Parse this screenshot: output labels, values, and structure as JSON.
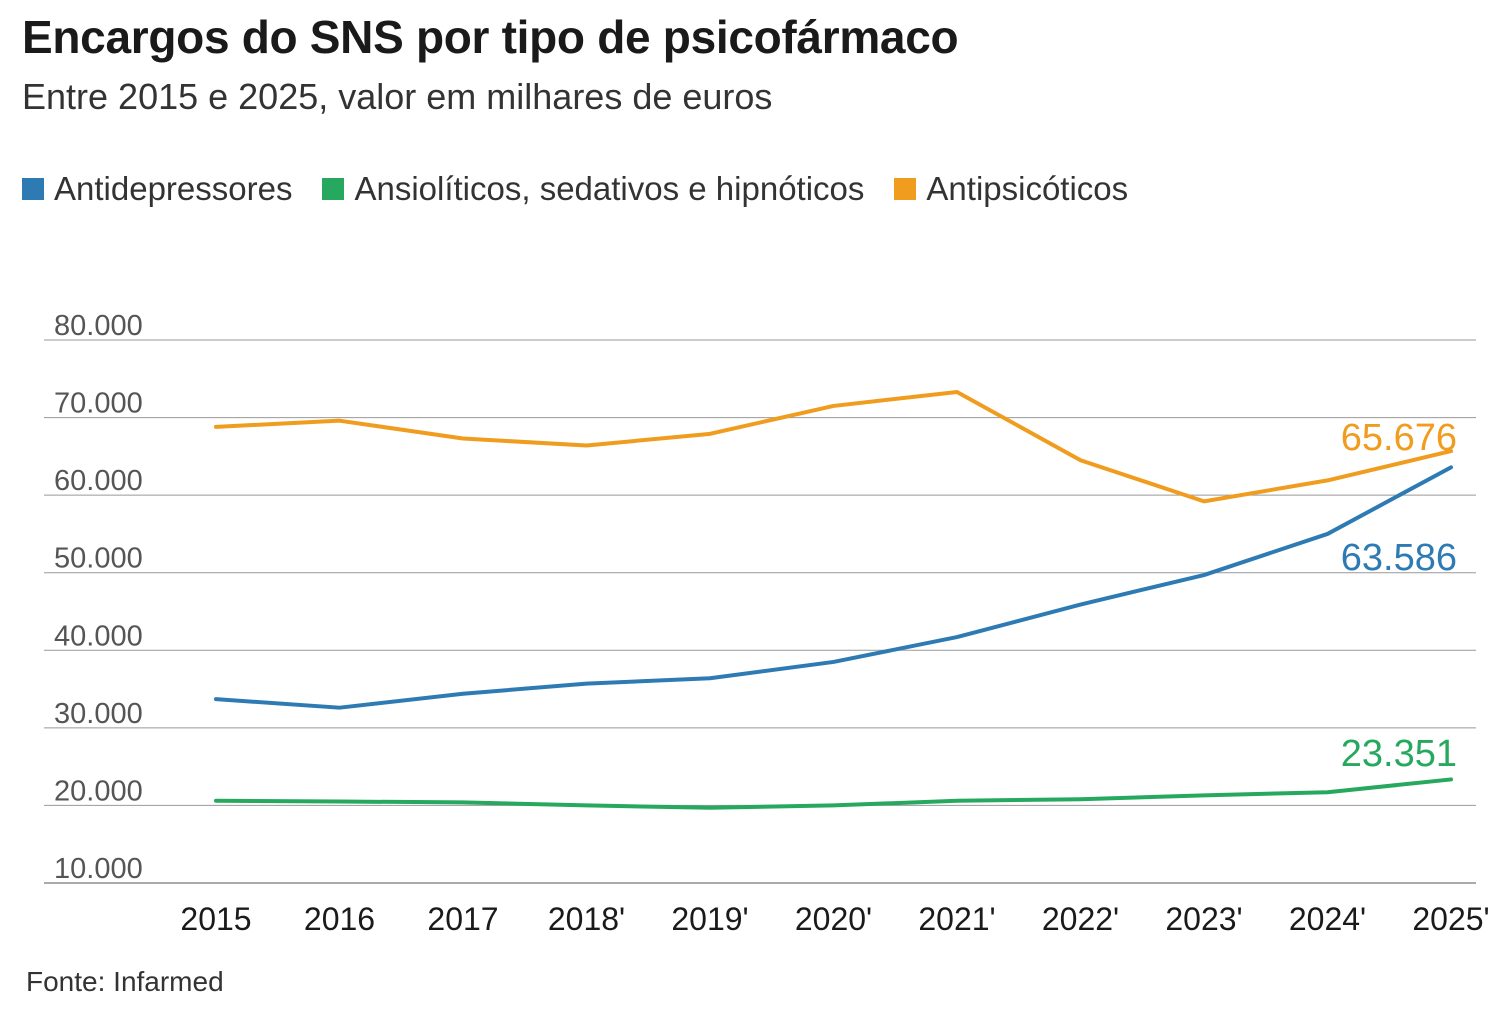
{
  "chart_data": {
    "type": "line",
    "title": "Encargos do SNS por tipo de psicofármaco",
    "subtitle": "Entre 2015 e 2025, valor em milhares de euros",
    "source": "Fonte: Infarmed",
    "xlabel": "",
    "ylabel": "",
    "ylim": [
      10000,
      80000
    ],
    "grid": true,
    "legend_position": "top-left",
    "y_ticks": [
      {
        "value": 80000,
        "label": "80.000"
      },
      {
        "value": 70000,
        "label": "70.000"
      },
      {
        "value": 60000,
        "label": "60.000"
      },
      {
        "value": 50000,
        "label": "50.000"
      },
      {
        "value": 40000,
        "label": "40.000"
      },
      {
        "value": 30000,
        "label": "30.000"
      },
      {
        "value": 20000,
        "label": "20.000"
      },
      {
        "value": 10000,
        "label": "10.000"
      }
    ],
    "categories": [
      "2015",
      "2016",
      "2017",
      "2018'",
      "2019'",
      "2020'",
      "2021'",
      "2022'",
      "2023'",
      "2024'",
      "2025'"
    ],
    "series": [
      {
        "name": "Antidepressores",
        "color": "#2e7bb4",
        "values": [
          33700,
          32600,
          34400,
          35700,
          36400,
          38500,
          41700,
          45900,
          49700,
          55000,
          63586
        ],
        "end_label": "63.586"
      },
      {
        "name": "Ansiolíticos, sedativos e hipnóticos",
        "color": "#27a85f",
        "values": [
          20600,
          20500,
          20400,
          20000,
          19700,
          20000,
          20600,
          20800,
          21300,
          21700,
          23351
        ],
        "end_label": "23.351"
      },
      {
        "name": "Antipsicóticos",
        "color": "#f09c1e",
        "values": [
          68800,
          69600,
          67300,
          66400,
          67900,
          71500,
          73300,
          64500,
          59200,
          61900,
          65676
        ],
        "end_label": "65.676"
      }
    ]
  }
}
